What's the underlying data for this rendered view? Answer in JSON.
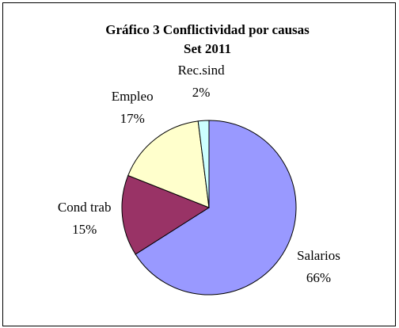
{
  "chart_data": {
    "type": "pie",
    "title": "Gráfico 3 Conflictividad por causas",
    "subtitle": "Set 2011",
    "categories": [
      "Salarios",
      "Cond trab",
      "Empleo",
      "Rec.sind"
    ],
    "values": [
      66,
      15,
      17,
      2
    ],
    "value_labels": [
      "66%",
      "15%",
      "17%",
      "2%"
    ],
    "colors": [
      "#9999ff",
      "#993366",
      "#ffffcc",
      "#ccffff"
    ]
  }
}
